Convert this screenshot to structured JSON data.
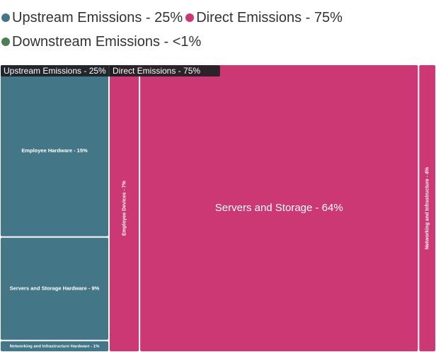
{
  "legend": {
    "items": [
      {
        "label": "Upstream Emissions - 25%",
        "color": "#437687"
      },
      {
        "label": "Direct Emissions - 75%",
        "color": "#cc3874"
      },
      {
        "label": "Downstream Emissions - <1%",
        "color": "#4a7f52"
      }
    ]
  },
  "chart_data": {
    "type": "treemap",
    "groups": [
      {
        "name": "Upstream Emissions",
        "header": "Upstream Emissions - 25%",
        "value": 25,
        "color": "#437687",
        "children": [
          {
            "label": "Employee Hardware - 15%",
            "value": 15
          },
          {
            "label": "Servers and Storage Hardware - 9%",
            "value": 9
          },
          {
            "label": "Networking and Infrastructure Hardware - 1%",
            "value": 1
          }
        ]
      },
      {
        "name": "Direct Emissions",
        "header": "Direct Emissions - 75%",
        "value": 75,
        "color": "#cc3874",
        "children": [
          {
            "label": "Employee Devices - 7%",
            "value": 7
          },
          {
            "label": "Servers and Storage - 64%",
            "value": 64
          },
          {
            "label": "Networking and Infrastructure - 4%",
            "value": 4
          }
        ]
      }
    ]
  }
}
